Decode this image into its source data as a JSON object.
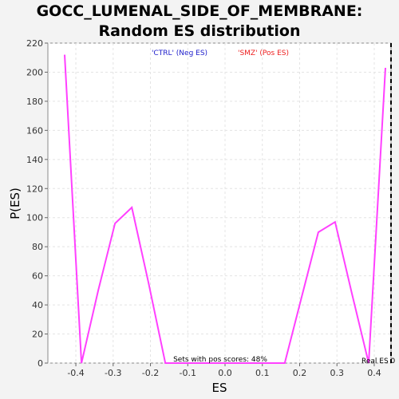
{
  "chart_data": {
    "type": "line",
    "title_lines": [
      "GOCC_LUMENAL_SIDE_OF_MEMBRANE:",
      "Random ES distribution"
    ],
    "xlabel": "ES",
    "ylabel": "P(ES)",
    "xlim": [
      -0.475,
      0.445
    ],
    "ylim": [
      0,
      220
    ],
    "x_ticks": [
      -0.4,
      -0.3,
      -0.2,
      -0.1,
      0.0,
      0.1,
      0.2,
      0.3,
      0.4
    ],
    "x_tick_labels": [
      "-0.4",
      "-0.3",
      "-0.2",
      "-0.1",
      "0.0",
      "0.1",
      "0.2",
      "0.3",
      "0.4"
    ],
    "y_ticks": [
      0,
      20,
      40,
      60,
      80,
      100,
      120,
      140,
      160,
      180,
      200,
      220
    ],
    "y_tick_labels": [
      "0",
      "20",
      "40",
      "60",
      "80",
      "100",
      "120",
      "140",
      "160",
      "180",
      "200",
      "220"
    ],
    "grid": true,
    "series": [
      {
        "color": "#ff40ff",
        "x": [
          -0.43,
          -0.385,
          -0.34,
          -0.295,
          -0.25,
          -0.205,
          -0.16,
          -0.115,
          -0.07,
          -0.025,
          0.02,
          0.065,
          0.11,
          0.16,
          0.205,
          0.25,
          0.295,
          0.34,
          0.385,
          0.43
        ],
        "y": [
          212,
          0,
          50,
          96,
          107,
          55,
          0,
          0,
          0,
          0,
          0,
          0,
          0,
          0,
          45,
          90,
          97,
          48,
          0,
          203
        ]
      }
    ],
    "legend": {
      "neg_label": "'CTRL' (Neg ES)",
      "neg_color": "#2020cc",
      "pos_label": "'SMZ' (Pos ES)",
      "pos_color": "#ee2020"
    },
    "real_es": {
      "x": 0.445,
      "label": "Real ES 0"
    },
    "annotation": "Sets with pos scores: 48%"
  }
}
